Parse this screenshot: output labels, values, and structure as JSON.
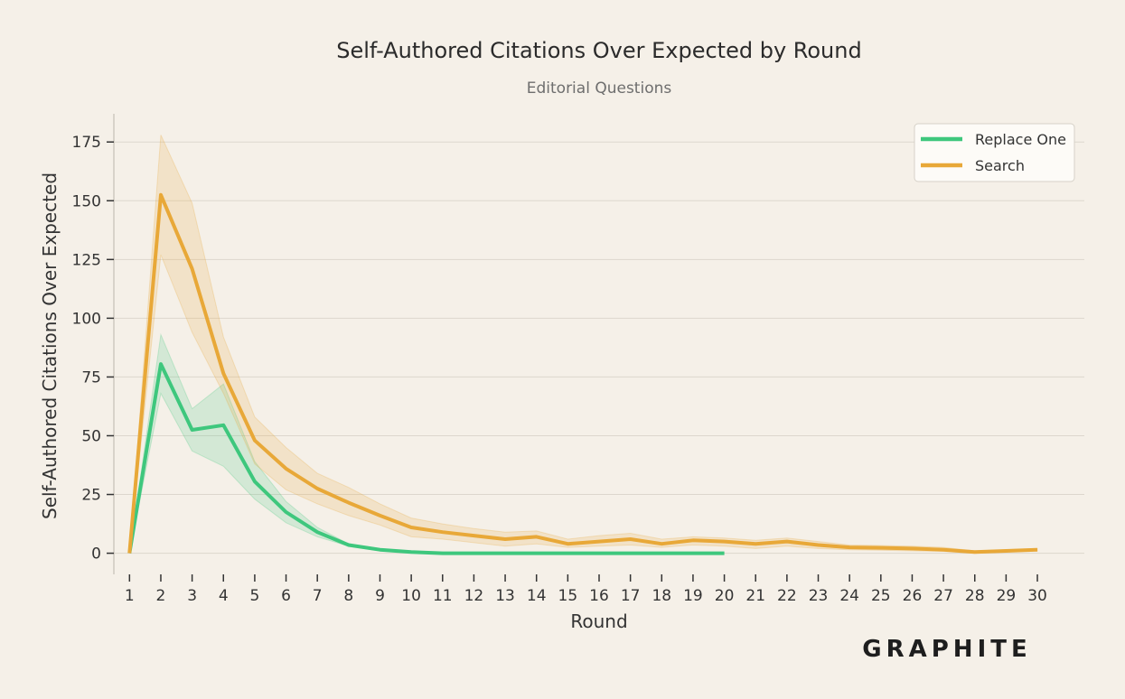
{
  "chart_data": {
    "type": "line",
    "title": "Self-Authored Citations Over Expected by Round",
    "subtitle": "Editorial Questions",
    "xlabel": "Round",
    "ylabel": "Self-Authored Citations Over Expected",
    "x": [
      1,
      2,
      3,
      4,
      5,
      6,
      7,
      8,
      9,
      10,
      11,
      12,
      13,
      14,
      15,
      16,
      17,
      18,
      19,
      20,
      21,
      22,
      23,
      24,
      25,
      26,
      27,
      28,
      29,
      30
    ],
    "xlim": [
      0.5,
      31.5
    ],
    "ylim": [
      -9,
      187
    ],
    "yticks": [
      0,
      25,
      50,
      75,
      100,
      125,
      150,
      175
    ],
    "grid": "horizontal",
    "legend_position": "top-right",
    "series": [
      {
        "name": "Replace One",
        "color": "#3ec77d",
        "x": [
          1,
          2,
          3,
          4,
          5,
          6,
          7,
          8,
          9,
          10,
          11,
          12,
          13,
          14,
          15,
          16,
          17,
          18,
          19,
          20
        ],
        "values": [
          0,
          80.5,
          52.5,
          54.5,
          30.5,
          17.5,
          9,
          3.5,
          1.5,
          0.5,
          0,
          0,
          0,
          0,
          0,
          0,
          0,
          0,
          0,
          0
        ],
        "lower": [
          0,
          68,
          43.5,
          37,
          23,
          13,
          7,
          3,
          1,
          0.3,
          0,
          0,
          0,
          0,
          0,
          0,
          0,
          0,
          0,
          0
        ],
        "upper": [
          0,
          93,
          61.5,
          72,
          39,
          22,
          11,
          4,
          2,
          0.7,
          0,
          0,
          0,
          0,
          0,
          0,
          0,
          0,
          0,
          0
        ]
      },
      {
        "name": "Search",
        "color": "#e8a838",
        "x": [
          1,
          2,
          3,
          4,
          5,
          6,
          7,
          8,
          9,
          10,
          11,
          12,
          13,
          14,
          15,
          16,
          17,
          18,
          19,
          20,
          21,
          22,
          23,
          24,
          25,
          26,
          27,
          28,
          29,
          30
        ],
        "values": [
          0,
          152.5,
          121,
          76.5,
          48,
          36,
          27.5,
          21.5,
          16,
          11,
          9,
          7.5,
          6,
          7,
          4,
          5,
          6,
          4,
          5.5,
          5,
          4,
          5,
          3.5,
          2.5,
          2.3,
          2,
          1.5,
          0.5,
          1,
          1.5
        ],
        "lower": [
          0,
          127,
          94,
          68,
          38,
          27,
          21,
          16,
          12,
          7,
          6,
          4.5,
          3,
          4,
          2.5,
          3,
          3.5,
          2.5,
          3.5,
          3,
          2,
          3,
          2,
          1.5,
          1.3,
          1,
          0.8,
          0,
          0.5,
          1
        ],
        "upper": [
          0,
          178,
          149,
          92,
          58,
          45,
          34,
          28,
          21,
          15,
          12.5,
          10.5,
          9,
          9.5,
          6,
          7.5,
          8.5,
          6,
          7,
          6.5,
          5.5,
          6.5,
          5,
          3.5,
          3.3,
          3,
          2.5,
          1,
          1.5,
          2
        ]
      }
    ]
  },
  "brand": {
    "text": "GRAPHITE"
  }
}
